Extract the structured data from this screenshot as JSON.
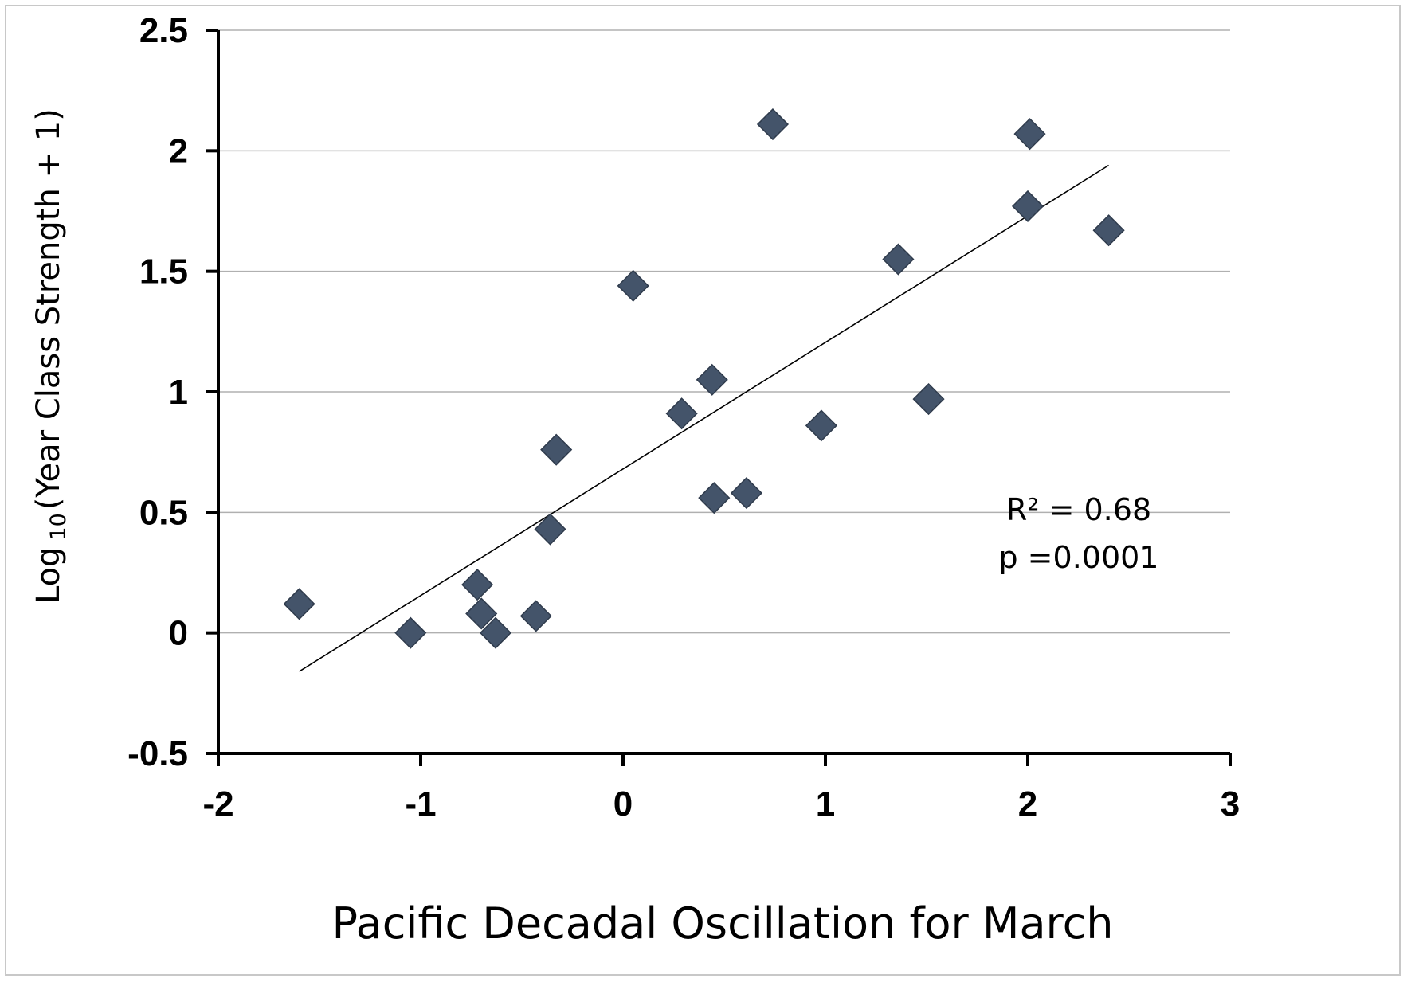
{
  "chart_data": {
    "type": "scatter",
    "xlabel": "Pacific Decadal Oscillation for March",
    "ylabel_prefix": "Log",
    "ylabel_subscript": "10",
    "ylabel_suffix": "(Year Class Strength + 1)",
    "xlim": [
      -2,
      3
    ],
    "ylim": [
      -0.5,
      2.5
    ],
    "x_ticks": [
      "-2",
      "-1",
      "0",
      "1",
      "2",
      "3"
    ],
    "y_ticks": [
      "2.5",
      "2",
      "1.5",
      "1",
      "0.5",
      "0",
      "-0.5"
    ],
    "grid": "horizontal",
    "legend": "none",
    "marker": "diamond",
    "marker_color": "#44546A",
    "points": [
      {
        "x": -1.6,
        "y": 0.12
      },
      {
        "x": -1.05,
        "y": 0.0
      },
      {
        "x": -0.72,
        "y": 0.2
      },
      {
        "x": -0.7,
        "y": 0.08
      },
      {
        "x": -0.63,
        "y": 0.0
      },
      {
        "x": -0.43,
        "y": 0.07
      },
      {
        "x": -0.36,
        "y": 0.43
      },
      {
        "x": -0.33,
        "y": 0.76
      },
      {
        "x": 0.05,
        "y": 1.44
      },
      {
        "x": 0.29,
        "y": 0.91
      },
      {
        "x": 0.44,
        "y": 1.05
      },
      {
        "x": 0.45,
        "y": 0.56
      },
      {
        "x": 0.61,
        "y": 0.58
      },
      {
        "x": 0.74,
        "y": 2.11
      },
      {
        "x": 0.98,
        "y": 0.86
      },
      {
        "x": 1.36,
        "y": 1.55
      },
      {
        "x": 1.51,
        "y": 0.97
      },
      {
        "x": 2.0,
        "y": 1.77
      },
      {
        "x": 2.01,
        "y": 2.07
      },
      {
        "x": 2.4,
        "y": 1.67
      }
    ],
    "trendline": {
      "x": [
        -1.6,
        2.4
      ],
      "y": [
        -0.16,
        1.94
      ]
    },
    "annotations": [
      "R² = 0.68",
      "p =0.0001"
    ]
  }
}
